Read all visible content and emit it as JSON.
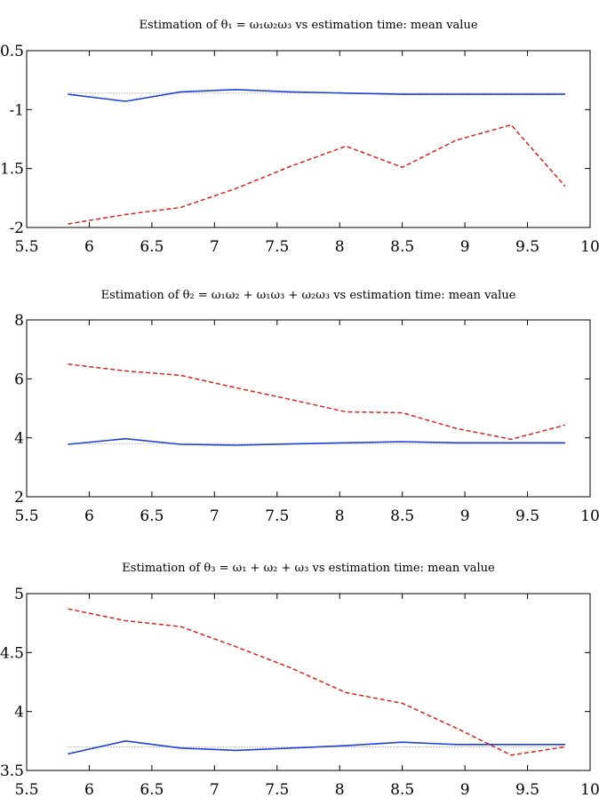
{
  "figure": {
    "background": "#ffffff"
  },
  "colors": {
    "blue": "#1f3fd6",
    "red": "#e0201a",
    "gray": "#888888",
    "axis": "#000000"
  },
  "chart_data": [
    {
      "type": "line",
      "title": "Estimation of θ₁ = ω₁ω₂ω₃ vs estimation time: mean value",
      "xlabel": "",
      "ylabel": "",
      "xlim": [
        5.5,
        10
      ],
      "ylim": [
        -2,
        -0.5
      ],
      "xticks": [
        5.5,
        6,
        6.5,
        7,
        7.5,
        8,
        8.5,
        9,
        9.5,
        10
      ],
      "xtick_labels": [
        "5.5",
        "6",
        "6.5",
        "7",
        "7.5",
        "8",
        "8.5",
        "9",
        "9.5",
        "10"
      ],
      "yticks": [
        -2,
        -1.5,
        -1,
        -0.5
      ],
      "ytick_labels": [
        "-2",
        "-1.5",
        "-1",
        "-0.5"
      ],
      "x": [
        5.83,
        6.29,
        6.73,
        7.17,
        7.61,
        8.05,
        8.5,
        8.93,
        9.37,
        9.8
      ],
      "series": [
        {
          "style": "dotted",
          "color": "gray",
          "values": [
            -0.86,
            -0.86,
            -0.86,
            -0.86,
            -0.86,
            -0.86,
            -0.86,
            -0.86,
            -0.86,
            -0.86
          ]
        },
        {
          "style": "solid",
          "color": "blue",
          "values": [
            -0.87,
            -0.93,
            -0.85,
            -0.83,
            -0.85,
            -0.86,
            -0.87,
            -0.87,
            -0.87,
            -0.87
          ]
        },
        {
          "style": "dashed",
          "color": "red",
          "values": [
            -1.97,
            -1.89,
            -1.83,
            -1.67,
            -1.48,
            -1.31,
            -1.49,
            -1.26,
            -1.13,
            -1.65
          ]
        }
      ],
      "grid": false
    },
    {
      "type": "line",
      "title": "Estimation of θ₂ = ω₁ω₂ + ω₁ω₃ + ω₂ω₃ vs estimation time: mean value",
      "xlabel": "",
      "ylabel": "",
      "xlim": [
        5.5,
        10
      ],
      "ylim": [
        2,
        8
      ],
      "xticks": [
        5.5,
        6,
        6.5,
        7,
        7.5,
        8,
        8.5,
        9,
        9.5,
        10
      ],
      "xtick_labels": [
        "5.5",
        "6",
        "6.5",
        "7",
        "7.5",
        "8",
        "8.5",
        "9",
        "9.5",
        "10"
      ],
      "yticks": [
        2,
        4,
        6,
        8
      ],
      "ytick_labels": [
        "2",
        "4",
        "6",
        "8"
      ],
      "x": [
        5.83,
        6.29,
        6.73,
        7.17,
        7.61,
        8.05,
        8.5,
        8.93,
        9.37,
        9.8
      ],
      "series": [
        {
          "style": "dotted",
          "color": "gray",
          "values": [
            3.8,
            3.8,
            3.8,
            3.8,
            3.8,
            3.8,
            3.8,
            3.8,
            3.8,
            3.8
          ]
        },
        {
          "style": "solid",
          "color": "blue",
          "values": [
            3.78,
            3.97,
            3.78,
            3.75,
            3.79,
            3.83,
            3.87,
            3.83,
            3.83,
            3.83
          ]
        },
        {
          "style": "dashed",
          "color": "red",
          "values": [
            6.5,
            6.27,
            6.12,
            5.7,
            5.3,
            4.88,
            4.85,
            4.32,
            3.95,
            4.43
          ]
        }
      ],
      "grid": false
    },
    {
      "type": "line",
      "title": "Estimation of θ₃ = ω₁ + ω₂ + ω₃ vs estimation time: mean value",
      "xlabel": "",
      "ylabel": "",
      "xlim": [
        5.5,
        10
      ],
      "ylim": [
        3.5,
        5
      ],
      "xticks": [
        5.5,
        6,
        6.5,
        7,
        7.5,
        8,
        8.5,
        9,
        9.5,
        10
      ],
      "xtick_labels": [
        "5.5",
        "6",
        "6.5",
        "7",
        "7.5",
        "8",
        "8.5",
        "9",
        "9.5",
        "10"
      ],
      "yticks": [
        3.5,
        4,
        4.5,
        5
      ],
      "ytick_labels": [
        "3.5",
        "4",
        "4.5",
        "5"
      ],
      "x": [
        5.83,
        6.29,
        6.73,
        7.17,
        7.61,
        8.05,
        8.5,
        8.93,
        9.37,
        9.8
      ],
      "series": [
        {
          "style": "dotted",
          "color": "gray",
          "values": [
            3.7,
            3.7,
            3.7,
            3.7,
            3.7,
            3.7,
            3.7,
            3.7,
            3.7,
            3.7
          ]
        },
        {
          "style": "solid",
          "color": "blue",
          "values": [
            3.64,
            3.75,
            3.69,
            3.67,
            3.69,
            3.71,
            3.74,
            3.72,
            3.72,
            3.72
          ]
        },
        {
          "style": "dashed",
          "color": "red",
          "values": [
            4.87,
            4.77,
            4.72,
            4.55,
            4.37,
            4.16,
            4.07,
            3.86,
            3.63,
            3.7
          ]
        }
      ],
      "grid": false
    }
  ]
}
